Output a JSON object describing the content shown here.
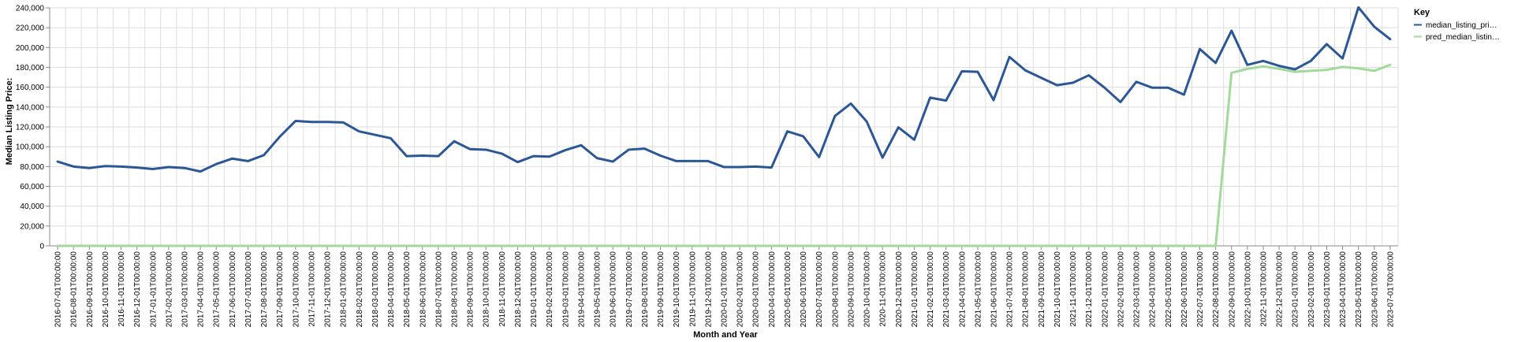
{
  "chart_data": {
    "type": "line",
    "xlabel": "Month and Year",
    "ylabel": "Median Listing Price:",
    "ylim": [
      0,
      240000
    ],
    "y_ticks": [
      "0",
      "20,000",
      "40,000",
      "60,000",
      "80,000",
      "100,000",
      "120,000",
      "140,000",
      "160,000",
      "180,000",
      "200,000",
      "220,000",
      "240,000"
    ],
    "grid": true,
    "legend": {
      "title": "Key",
      "position": "right",
      "items": [
        {
          "label": "median_listing_pri…",
          "color": "#2b5797"
        },
        {
          "label": "pred_median_listin…",
          "color": "#a3d99b"
        }
      ]
    },
    "x": [
      "2016-07-01T00:00:00",
      "2016-08-01T00:00:00",
      "2016-09-01T00:00:00",
      "2016-10-01T00:00:00",
      "2016-11-01T00:00:00",
      "2016-12-01T00:00:00",
      "2017-01-01T00:00:00",
      "2017-02-01T00:00:00",
      "2017-03-01T00:00:00",
      "2017-04-01T00:00:00",
      "2017-05-01T00:00:00",
      "2017-06-01T00:00:00",
      "2017-07-01T00:00:00",
      "2017-08-01T00:00:00",
      "2017-09-01T00:00:00",
      "2017-10-01T00:00:00",
      "2017-11-01T00:00:00",
      "2017-12-01T00:00:00",
      "2018-01-01T00:00:00",
      "2018-02-01T00:00:00",
      "2018-03-01T00:00:00",
      "2018-04-01T00:00:00",
      "2018-05-01T00:00:00",
      "2018-06-01T00:00:00",
      "2018-07-01T00:00:00",
      "2018-08-01T00:00:00",
      "2018-09-01T00:00:00",
      "2018-10-01T00:00:00",
      "2018-11-01T00:00:00",
      "2018-12-01T00:00:00",
      "2019-01-01T00:00:00",
      "2019-02-01T00:00:00",
      "2019-03-01T00:00:00",
      "2019-04-01T00:00:00",
      "2019-05-01T00:00:00",
      "2019-06-01T00:00:00",
      "2019-07-01T00:00:00",
      "2019-08-01T00:00:00",
      "2019-09-01T00:00:00",
      "2019-10-01T00:00:00",
      "2019-11-01T00:00:00",
      "2019-12-01T00:00:00",
      "2020-01-01T00:00:00",
      "2020-02-01T00:00:00",
      "2020-03-01T00:00:00",
      "2020-04-01T00:00:00",
      "2020-05-01T00:00:00",
      "2020-06-01T00:00:00",
      "2020-07-01T00:00:00",
      "2020-08-01T00:00:00",
      "2020-09-01T00:00:00",
      "2020-10-01T00:00:00",
      "2020-11-01T00:00:00",
      "2020-12-01T00:00:00",
      "2021-01-01T00:00:00",
      "2021-02-01T00:00:00",
      "2021-03-01T00:00:00",
      "2021-04-01T00:00:00",
      "2021-05-01T00:00:00",
      "2021-06-01T00:00:00",
      "2021-07-01T00:00:00",
      "2021-08-01T00:00:00",
      "2021-09-01T00:00:00",
      "2021-10-01T00:00:00",
      "2021-11-01T00:00:00",
      "2021-12-01T00:00:00",
      "2022-01-01T00:00:00",
      "2022-02-01T00:00:00",
      "2022-03-01T00:00:00",
      "2022-04-01T00:00:00",
      "2022-05-01T00:00:00",
      "2022-06-01T00:00:00",
      "2022-07-01T00:00:00",
      "2022-08-01T00:00:00",
      "2022-09-01T00:00:00",
      "2022-10-01T00:00:00",
      "2022-11-01T00:00:00",
      "2022-12-01T00:00:00",
      "2023-01-01T00:00:00",
      "2023-02-01T00:00:00",
      "2023-03-01T00:00:00",
      "2023-04-01T00:00:00",
      "2023-05-01T00:00:00",
      "2023-06-01T00:00:00",
      "2023-07-01T00:00:00"
    ],
    "series": [
      {
        "name": "median_listing_pri…",
        "color": "#2b5797",
        "values": [
          85000,
          80000,
          78500,
          80500,
          80000,
          79000,
          77500,
          79500,
          78500,
          75000,
          82500,
          88000,
          85500,
          91500,
          110000,
          126000,
          125000,
          125000,
          124500,
          115500,
          112000,
          108500,
          90500,
          91000,
          90500,
          105500,
          97500,
          97000,
          93000,
          84500,
          90500,
          90000,
          96500,
          101500,
          88500,
          85000,
          97000,
          98000,
          91000,
          85500,
          85500,
          85500,
          79500,
          79500,
          80000,
          79000,
          115500,
          110500,
          89500,
          131000,
          143500,
          125500,
          89000,
          119500,
          107000,
          149500,
          146500,
          176000,
          175500,
          147000,
          190500,
          177000,
          169500,
          162000,
          164500,
          172000,
          159500,
          145000,
          165500,
          159500,
          159500,
          152500,
          198500,
          184500,
          217000,
          182500,
          186500,
          181500,
          178000,
          186500,
          203500,
          189000,
          240500,
          221000,
          208500
        ]
      },
      {
        "name": "pred_median_listin…",
        "color": "#a3d99b",
        "values": [
          0,
          0,
          0,
          0,
          0,
          0,
          0,
          0,
          0,
          0,
          0,
          0,
          0,
          0,
          0,
          0,
          0,
          0,
          0,
          0,
          0,
          0,
          0,
          0,
          0,
          0,
          0,
          0,
          0,
          0,
          0,
          0,
          0,
          0,
          0,
          0,
          0,
          0,
          0,
          0,
          0,
          0,
          0,
          0,
          0,
          0,
          0,
          0,
          0,
          0,
          0,
          0,
          0,
          0,
          0,
          0,
          0,
          0,
          0,
          0,
          0,
          0,
          0,
          0,
          0,
          0,
          0,
          0,
          0,
          0,
          0,
          0,
          0,
          0,
          174500,
          178500,
          181000,
          178500,
          175500,
          176500,
          177500,
          180500,
          179000,
          176500,
          182500
        ]
      }
    ]
  }
}
